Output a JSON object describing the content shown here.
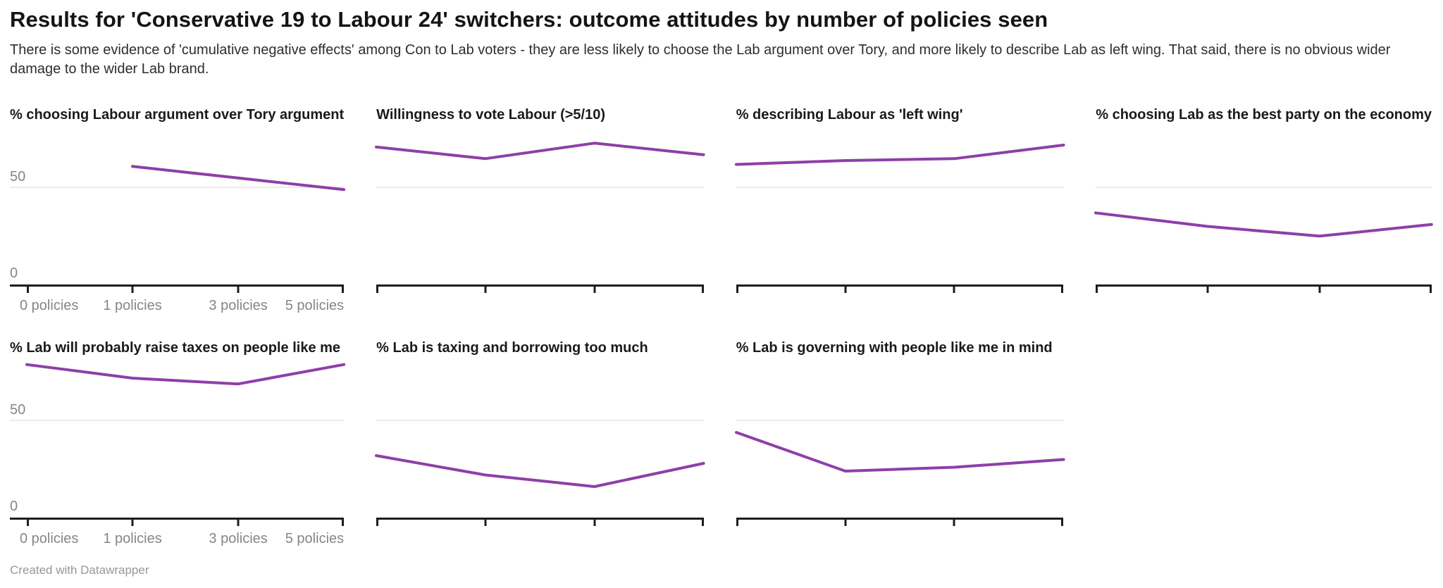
{
  "header": {
    "title": "Results for 'Conservative 19 to Labour 24' switchers: outcome attitudes by number of policies seen",
    "description": "There is some evidence of 'cumulative negative effects' among Con to Lab voters - they are less likely to choose the Lab argument over Tory, and more likely to describe Lab as left wing. That said, there is no obvious wider damage to the wider Lab brand."
  },
  "footer": {
    "credit": "Created with Datawrapper"
  },
  "colors": {
    "line": "#8e3fa8",
    "gridline": "#ebebeb",
    "axis": "#1d1d1d",
    "axis_label_text": "#868686",
    "title_text": "#141414",
    "background": "#ffffff"
  },
  "chart_data": {
    "type": "line",
    "layout": "small multiples, 4 columns x 2 rows, shared axes",
    "categories": [
      "0 policies",
      "1 policies",
      "3 policies",
      "5 policies"
    ],
    "y_axis": {
      "range": [
        0,
        80
      ],
      "ticks": [
        "0",
        "50"
      ],
      "gridline_at": 50,
      "labels_on_first_column_only": true
    },
    "x_axis": {
      "labels_on_first_column_only": true
    },
    "series": [
      {
        "name": "% choosing Labour argument over Tory argument",
        "values": [
          null,
          61,
          55,
          49
        ]
      },
      {
        "name": "Willingness to vote Labour (>5/10)",
        "values": [
          71,
          65,
          73,
          67
        ]
      },
      {
        "name": "% describing Labour as 'left wing'",
        "values": [
          62,
          64,
          65,
          72
        ]
      },
      {
        "name": "% choosing Lab as the best party on the economy",
        "values": [
          37,
          30,
          25,
          31
        ]
      },
      {
        "name": "% Lab will probably raise taxes on people like me",
        "values": [
          79,
          72,
          69,
          79
        ]
      },
      {
        "name": "% Lab is taxing and borrowing too much",
        "values": [
          32,
          22,
          16,
          28
        ]
      },
      {
        "name": "% Lab is governing with people like me in mind",
        "values": [
          44,
          24,
          26,
          30
        ]
      }
    ]
  }
}
